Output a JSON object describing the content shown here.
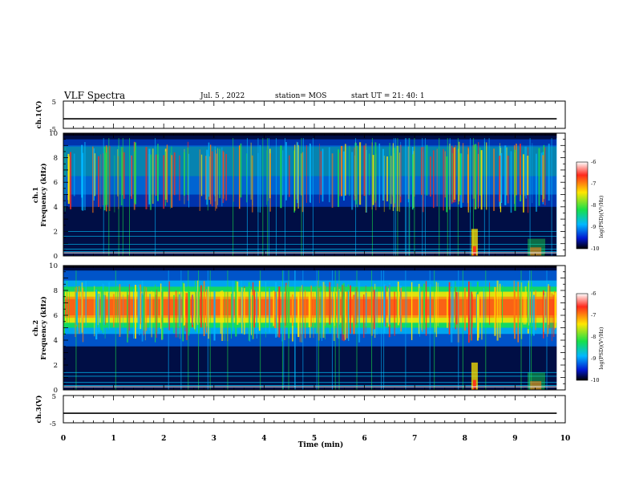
{
  "header": {
    "title": "VLF Spectra",
    "date": "Jul. 5 , 2022",
    "station": "station= MOS",
    "start": "start UT = 21: 40: 1"
  },
  "colorbar": {
    "label": "log(PSD)(V²/Hz)",
    "ticks": [
      "-6",
      "-7",
      "-8",
      "-9",
      "-10"
    ],
    "colors": [
      "#ffffff",
      "#ff2a1c",
      "#ffe600",
      "#18e04a",
      "#00b7ff",
      "#0018d0",
      "#000000"
    ]
  },
  "chart_data": [
    {
      "type": "line",
      "ylabel": "ch.1(V)",
      "ylim": [
        -5,
        5
      ],
      "yticks": [
        "5",
        "-5"
      ],
      "series": [
        {
          "values": [
            -1.5,
            -1.5
          ]
        }
      ]
    },
    {
      "type": "heatmap",
      "ylabel": "ch.1\nFrequency (kHz)",
      "ylim": [
        0,
        10
      ],
      "yticks": [
        "10",
        "8",
        "6",
        "4",
        "2",
        "0"
      ],
      "xlim": [
        0,
        10
      ],
      "band_khz": [
        4,
        9
      ],
      "peak_log_psd": -6,
      "colors_hint": "impulsive broadband emissions 4-9 kHz, noise lines below 2 kHz"
    },
    {
      "type": "heatmap",
      "ylabel": "ch.2\nFrequency (kHz)",
      "ylim": [
        0,
        10
      ],
      "yticks": [
        "10",
        "8",
        "6",
        "4",
        "2",
        "0"
      ],
      "xlim": [
        0,
        10
      ],
      "band_khz": [
        5,
        8
      ],
      "peak_log_psd": -6,
      "colors_hint": "continuous band centred near 6.5 kHz"
    },
    {
      "type": "line",
      "ylabel": "ch.3(V)",
      "ylim": [
        -5,
        5
      ],
      "yticks": [
        "5",
        "-5"
      ],
      "series": [
        {
          "values": [
            -1.5,
            -1.5
          ]
        }
      ]
    }
  ],
  "xaxis": {
    "label": "Time (min)",
    "ticks": [
      "0",
      "1",
      "2",
      "3",
      "4",
      "5",
      "6",
      "7",
      "8",
      "9",
      "10"
    ]
  }
}
